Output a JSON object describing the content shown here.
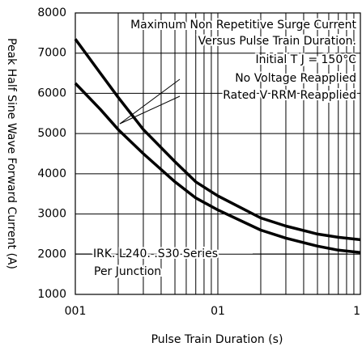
{
  "chart_data": {
    "type": "line",
    "title": "Maximum Non Repetitive Surge Current",
    "subtitle": "Versus Pulse Train Duration.",
    "annotations": [
      "Initial T J = 150°C",
      "IRK. L240. .S30 Series",
      "Per Junction"
    ],
    "x_label": "Pulse Train Duration (s)",
    "y_label": "Peak Half Sine Wave Forward Current (A)",
    "x": [
      0.01,
      0.015,
      0.02,
      0.03,
      0.05,
      0.07,
      0.1,
      0.2,
      0.3,
      0.5,
      0.7,
      1
    ],
    "series": [
      {
        "name": "No Voltage Reapplied",
        "color": "#000000",
        "values": [
          7350,
          6500,
          5900,
          5100,
          4300,
          3800,
          3450,
          2900,
          2700,
          2500,
          2420,
          2360
        ]
      },
      {
        "name": "Rated V RRM Reapplied",
        "color": "#000000",
        "values": [
          6250,
          5600,
          5100,
          4500,
          3800,
          3400,
          3100,
          2600,
          2400,
          2200,
          2100,
          2040
        ]
      }
    ],
    "x_log": true,
    "xlim": [
      0.01,
      1
    ],
    "xticks": [
      {
        "value": 0.01,
        "label": "001"
      },
      {
        "value": 0.1,
        "label": "01"
      },
      1
    ],
    "xminor": [
      0.02,
      0.03,
      0.04,
      0.05,
      0.06,
      0.07,
      0.08,
      0.09,
      0.2,
      0.3,
      0.4,
      0.5,
      0.6,
      0.7,
      0.8,
      0.9
    ],
    "ylim": [
      1000,
      8000
    ],
    "yticks": [
      1000,
      2000,
      3000,
      4000,
      5000,
      6000,
      7000,
      8000
    ],
    "grid": true
  }
}
